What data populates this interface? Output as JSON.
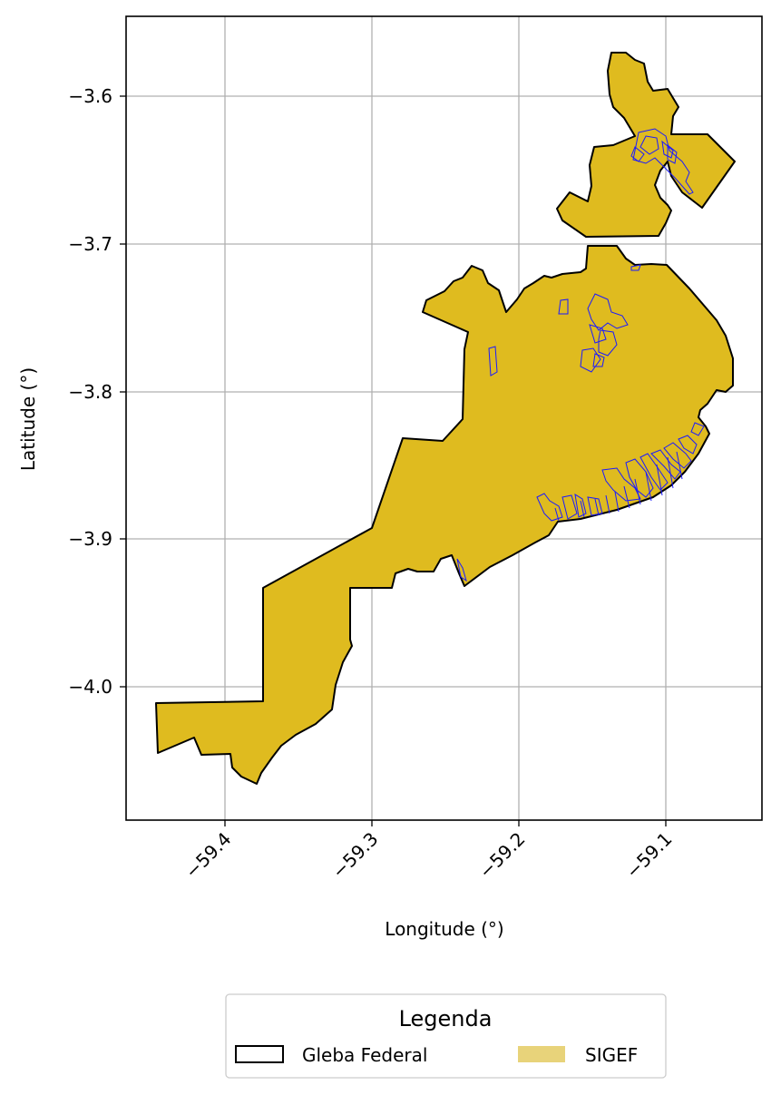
{
  "map": {
    "axes": {
      "xlabel": "Longitude (°)",
      "ylabel": "Latitude (°)",
      "xticks": [
        "−59.4",
        "−59.3",
        "−59.2",
        "−59.1"
      ],
      "yticks": [
        "−3.6",
        "−3.7",
        "−3.8",
        "−3.9",
        "−4.0"
      ],
      "grid": true
    },
    "legend": {
      "title": "Legenda",
      "items": [
        {
          "label": "Gleba Federal",
          "style": "outline",
          "color": "#000000"
        },
        {
          "label": "SIGEF",
          "style": "fill",
          "color": "#e8d37a"
        }
      ]
    },
    "colors": {
      "polygon_fill": "#dfbb1f",
      "polygon_outline": "#000000",
      "parcel_outline": "#1a1aff",
      "grid": "#b0b0b0"
    }
  }
}
